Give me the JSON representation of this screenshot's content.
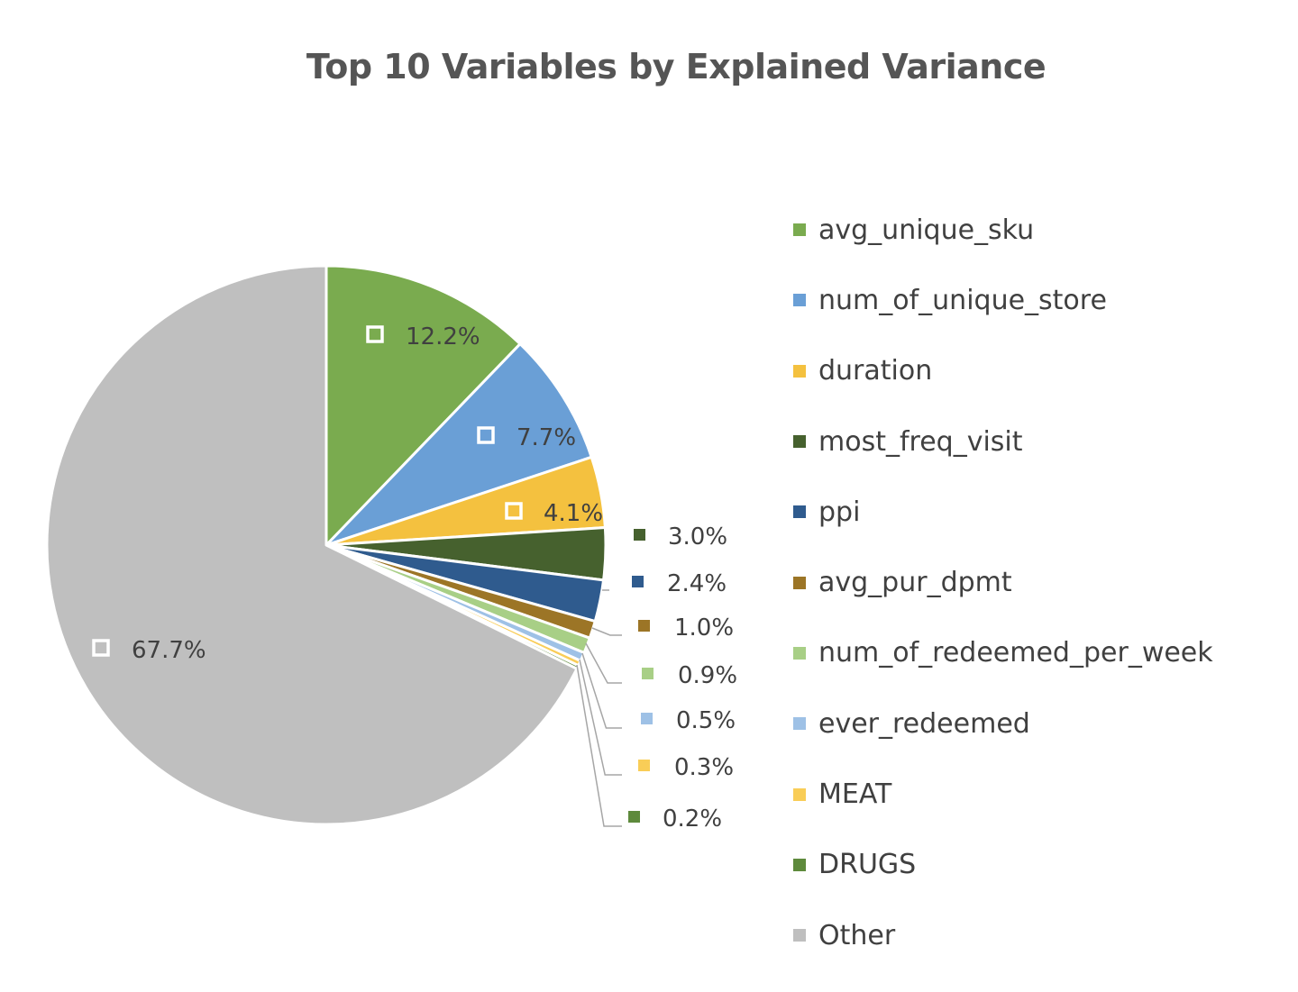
{
  "chart_data": {
    "type": "pie",
    "title": "Top 10 Variables by Explained Variance",
    "legend_position": "right",
    "slices": [
      {
        "name": "avg_unique_sku",
        "value": 12.2,
        "label": "12.2%",
        "color": "#7aab4f"
      },
      {
        "name": "num_of_unique_store",
        "value": 7.7,
        "label": "7.7%",
        "color": "#6a9fd6"
      },
      {
        "name": "duration",
        "value": 4.1,
        "label": "4.1%",
        "color": "#f4c13f"
      },
      {
        "name": "most_freq_visit",
        "value": 3.0,
        "label": "3.0%",
        "color": "#46612e"
      },
      {
        "name": "ppi",
        "value": 2.4,
        "label": "2.4%",
        "color": "#2f5b8e"
      },
      {
        "name": "avg_pur_dpmt",
        "value": 1.0,
        "label": "1.0%",
        "color": "#9c7526"
      },
      {
        "name": "num_of_redeemed_per_week",
        "value": 0.9,
        "label": "0.9%",
        "color": "#a8cf86"
      },
      {
        "name": "ever_redeemed",
        "value": 0.5,
        "label": "0.5%",
        "color": "#9ec1e6"
      },
      {
        "name": "MEAT",
        "value": 0.3,
        "label": "0.3%",
        "color": "#f9cd57"
      },
      {
        "name": "DRUGS",
        "value": 0.2,
        "label": "0.2%",
        "color": "#5e8a3c"
      },
      {
        "name": "Other",
        "value": 67.7,
        "label": "67.7%",
        "color": "#bfbfbf"
      }
    ]
  }
}
